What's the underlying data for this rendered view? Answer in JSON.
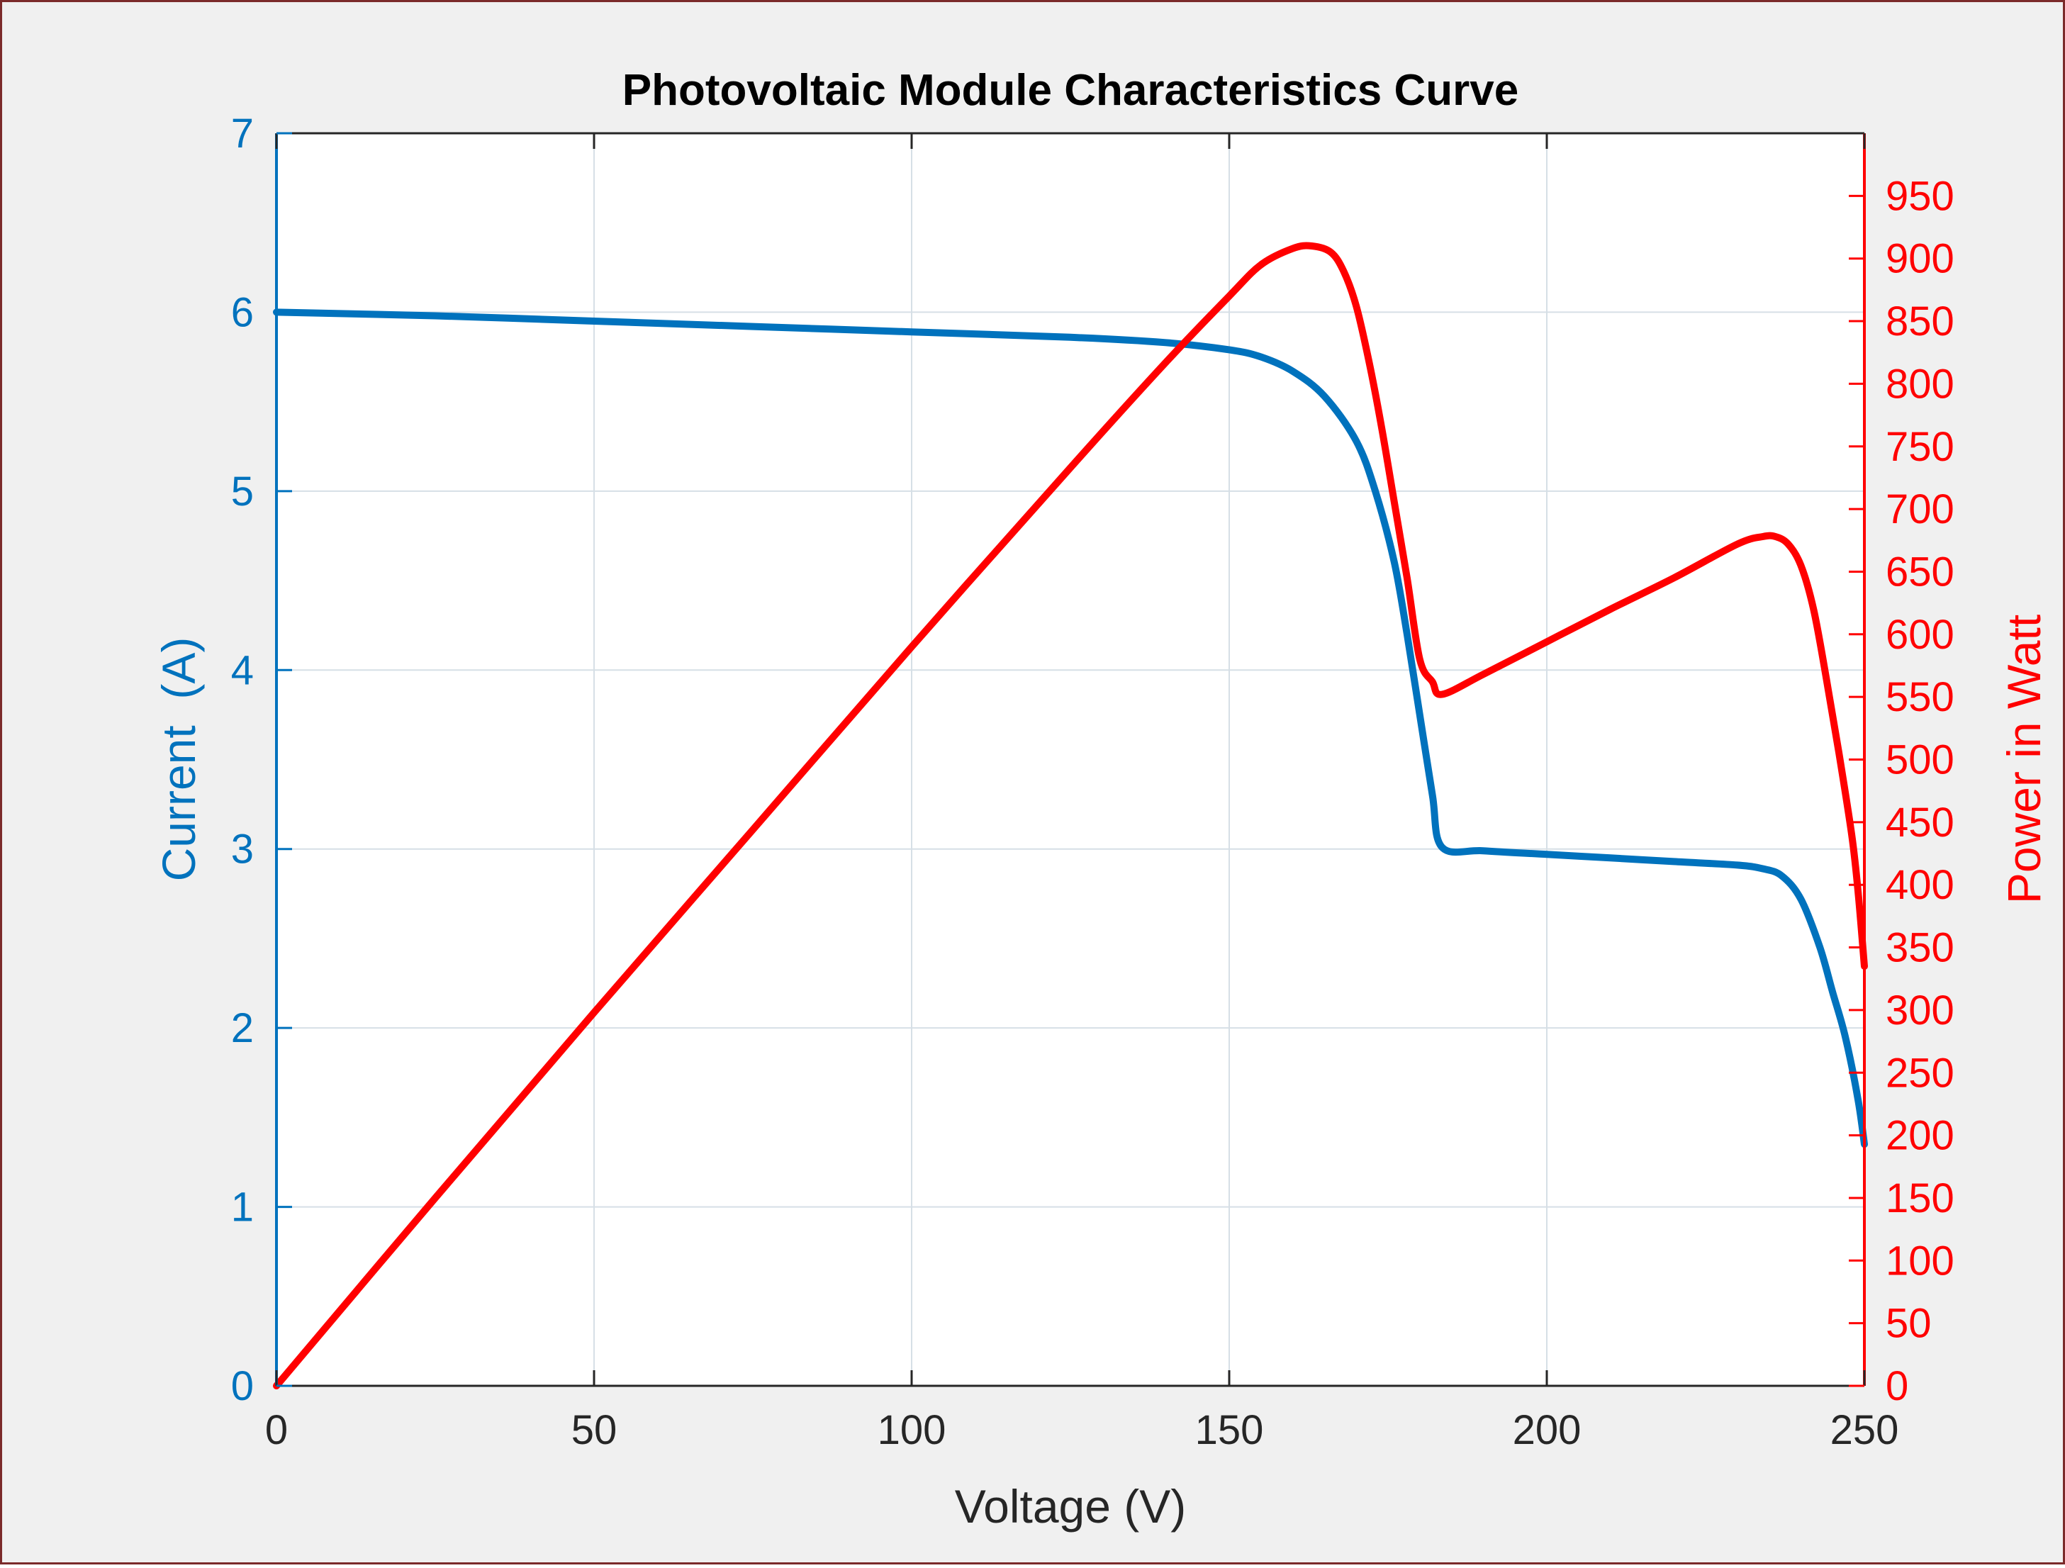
{
  "chart_data": {
    "type": "line",
    "title": "Photovoltaic Module Characteristics Curve",
    "xlabel": "Voltage (V)",
    "ylabel": "Current  (A)",
    "ylabel_right": "Power in Watt",
    "xlim": [
      0,
      250
    ],
    "ylim": [
      0,
      7
    ],
    "ylim_right": [
      0,
      1000
    ],
    "x_ticks": [
      "0",
      "50",
      "100",
      "150",
      "200",
      "250"
    ],
    "y_ticks": [
      "0",
      "1",
      "2",
      "3",
      "4",
      "5",
      "6",
      "7"
    ],
    "y_right_ticks": [
      "0",
      "50",
      "100",
      "150",
      "200",
      "250",
      "300",
      "350",
      "400",
      "450",
      "500",
      "550",
      "600",
      "650",
      "700",
      "750",
      "800",
      "850",
      "900",
      "950"
    ],
    "grid": true,
    "colors": {
      "current": "#0072BD",
      "power": "#FF0000",
      "grid": "#d6dfe6",
      "frame": "#262626",
      "background": "#f0f0f0",
      "border": "#7b2a2a"
    },
    "series": [
      {
        "name": "Current",
        "axis": "left",
        "color": "#0072BD",
        "x": [
          0,
          25,
          50,
          75,
          100,
          125,
          140,
          150,
          155,
          160,
          165,
          170,
          173,
          176,
          178,
          180,
          182,
          183.5,
          190,
          200,
          210,
          220,
          230,
          234,
          237,
          240,
          243,
          245,
          247,
          249,
          250
        ],
        "y": [
          6.0,
          5.98,
          5.95,
          5.92,
          5.89,
          5.86,
          5.83,
          5.79,
          5.75,
          5.67,
          5.53,
          5.28,
          5.0,
          4.6,
          4.2,
          3.75,
          3.3,
          3.01,
          2.99,
          2.97,
          2.95,
          2.93,
          2.91,
          2.89,
          2.85,
          2.72,
          2.45,
          2.2,
          1.95,
          1.6,
          1.35
        ]
      },
      {
        "name": "Power",
        "axis": "right",
        "color": "#FF0000",
        "x": [
          0,
          25,
          50,
          75,
          100,
          125,
          140,
          150,
          155,
          160,
          163,
          166,
          168,
          170,
          172,
          174,
          176,
          178,
          180,
          182,
          183.5,
          190,
          200,
          210,
          220,
          230,
          234,
          236,
          238,
          240,
          242,
          244,
          246,
          248,
          249,
          250
        ],
        "y": [
          0,
          150,
          298,
          444,
          590,
          733,
          817,
          870,
          895,
          908,
          910,
          905,
          890,
          862,
          818,
          765,
          705,
          645,
          580,
          562,
          552,
          568,
          594,
          620,
          645,
          672,
          678,
          678,
          672,
          655,
          620,
          565,
          505,
          440,
          395,
          335
        ]
      }
    ]
  }
}
